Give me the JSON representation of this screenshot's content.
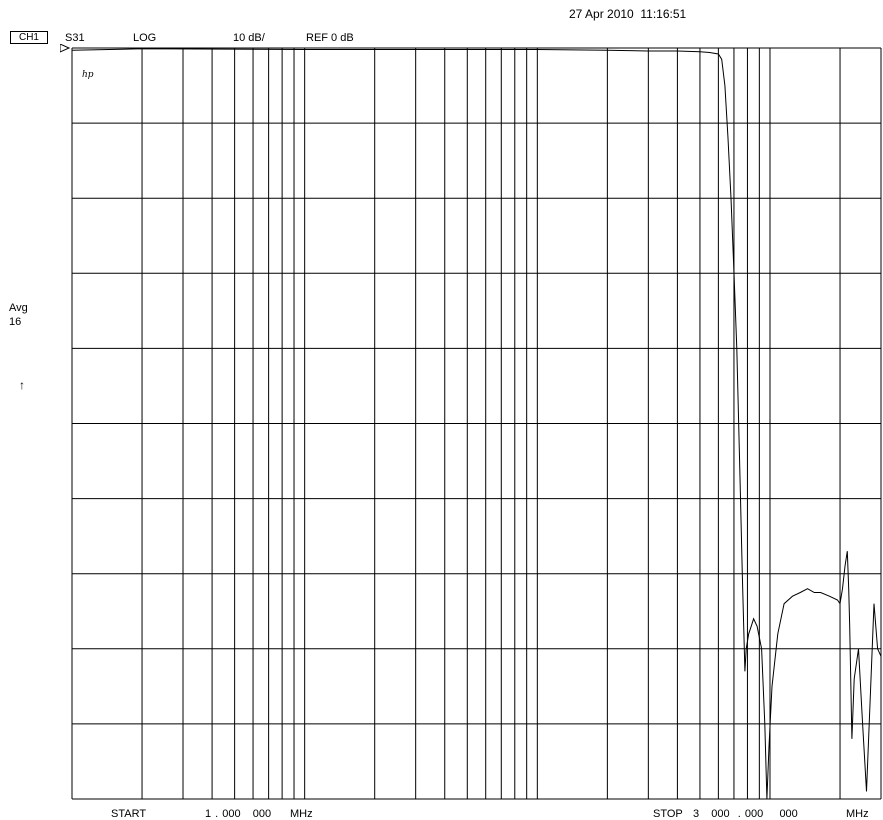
{
  "header": {
    "timestamp": "27 Apr 2010  11:16:51",
    "channel": "CH1",
    "parameter": "S31",
    "format": "LOG",
    "scale": "10 dB/",
    "reference": "REF 0 dB"
  },
  "side": {
    "avg_label": "Avg",
    "avg_count": "16",
    "arrow": "↑"
  },
  "footer": {
    "start_label": "START",
    "start_value": "1 . 000   000",
    "start_unit": "MHz",
    "stop_label": "STOP",
    "stop_value": "3   000  . 000    000",
    "stop_unit": "MHz"
  },
  "logo": "hp",
  "chart_data": {
    "type": "line",
    "x_scale": "log",
    "x_unit": "MHz",
    "y_unit": "dB",
    "xlim": [
      1,
      3000
    ],
    "ylim": [
      -100,
      0
    ],
    "grid": true,
    "series": [
      {
        "values": [
          [
            1,
            -0.3
          ],
          [
            2,
            -0.1
          ],
          [
            10,
            -0.2
          ],
          [
            50,
            -0.2
          ],
          [
            100,
            -0.2
          ],
          [
            200,
            -0.3
          ],
          [
            300,
            -0.4
          ],
          [
            400,
            -0.4
          ],
          [
            500,
            -0.5
          ],
          [
            550,
            -0.6
          ],
          [
            600,
            -0.8
          ],
          [
            620,
            -1.5
          ],
          [
            640,
            -5
          ],
          [
            660,
            -12
          ],
          [
            680,
            -20
          ],
          [
            700,
            -30
          ],
          [
            720,
            -40
          ],
          [
            740,
            -55
          ],
          [
            760,
            -70
          ],
          [
            780,
            -83
          ],
          [
            790,
            -80
          ],
          [
            810,
            -78
          ],
          [
            830,
            -77
          ],
          [
            850,
            -76
          ],
          [
            880,
            -77
          ],
          [
            920,
            -80
          ],
          [
            950,
            -90
          ],
          [
            970,
            -100
          ],
          [
            990,
            -93
          ],
          [
            1020,
            -85
          ],
          [
            1080,
            -78
          ],
          [
            1150,
            -74
          ],
          [
            1250,
            -73
          ],
          [
            1350,
            -72.5
          ],
          [
            1450,
            -72
          ],
          [
            1550,
            -72.5
          ],
          [
            1650,
            -72.5
          ],
          [
            1800,
            -73
          ],
          [
            1950,
            -73.5
          ],
          [
            2000,
            -74
          ],
          [
            2050,
            -72
          ],
          [
            2100,
            -69
          ],
          [
            2150,
            -67
          ],
          [
            2180,
            -72
          ],
          [
            2200,
            -77
          ],
          [
            2250,
            -92
          ],
          [
            2300,
            -84
          ],
          [
            2400,
            -80
          ],
          [
            2500,
            -90
          ],
          [
            2600,
            -99
          ],
          [
            2700,
            -86
          ],
          [
            2800,
            -74
          ],
          [
            2900,
            -80
          ],
          [
            3000,
            -81
          ]
        ]
      }
    ]
  }
}
